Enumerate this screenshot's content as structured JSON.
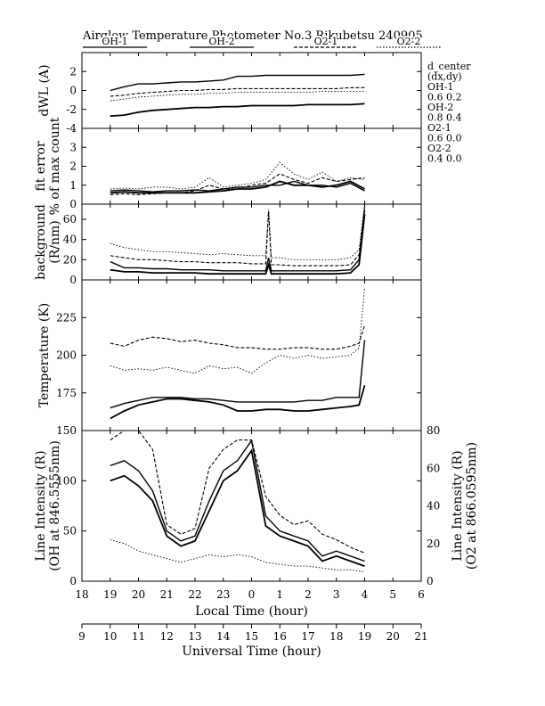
{
  "chart_data": [
    {
      "type": "line",
      "title": "Airglow Temperature Photometer No.3  Rikubetsu    240905",
      "legend": {
        "placement": "top",
        "entries": [
          "OH-1",
          "OH-2",
          "O2-1",
          "O2-2"
        ]
      },
      "side_notes": [
        "d_center",
        "(dx,dy)",
        "OH-1",
        "0.6  0.2",
        "OH-2",
        "0.8  0.4",
        "O2-1",
        "0.6  0.0",
        "O2-2",
        "0.4  0.0"
      ],
      "x_local": {
        "label": "Local Time (hour)",
        "ticks": [
          "18",
          "19",
          "20",
          "21",
          "22",
          "23",
          "0",
          "1",
          "2",
          "3",
          "4",
          "5",
          "6"
        ]
      },
      "x_ut": {
        "label": "Universal Time (hour)",
        "ticks": [
          "9",
          "10",
          "11",
          "12",
          "13",
          "14",
          "15",
          "16",
          "17",
          "18",
          "19",
          "20",
          "21"
        ]
      },
      "grid": false
    },
    {
      "panel": "dwl",
      "ylabel": "dWL (A)",
      "ylim": [
        -4,
        4
      ],
      "yticks": [
        "-4",
        "-2",
        "0",
        "2"
      ],
      "series": [
        {
          "name": "OH-1",
          "style": "solid",
          "x": [
            19.0,
            19.5,
            20.0,
            20.5,
            21.0,
            21.5,
            22.0,
            22.5,
            23.0,
            23.5,
            24.0,
            24.5,
            25.0,
            25.5,
            26.0,
            26.5,
            27.0,
            27.5,
            28.0
          ],
          "y": [
            0.0,
            0.4,
            0.7,
            0.7,
            0.8,
            0.9,
            0.9,
            1.0,
            1.1,
            1.5,
            1.5,
            1.6,
            1.6,
            1.6,
            1.6,
            1.6,
            1.6,
            1.6,
            1.7
          ]
        },
        {
          "name": "OH-2",
          "style": "solid",
          "x": [
            19.0,
            19.5,
            20.0,
            20.5,
            21.0,
            21.5,
            22.0,
            22.5,
            23.0,
            23.5,
            24.0,
            24.5,
            25.0,
            25.5,
            26.0,
            26.5,
            27.0,
            27.5,
            28.0
          ],
          "y": [
            -2.7,
            -2.6,
            -2.3,
            -2.1,
            -2.0,
            -1.9,
            -1.8,
            -1.8,
            -1.7,
            -1.7,
            -1.6,
            -1.6,
            -1.6,
            -1.6,
            -1.5,
            -1.5,
            -1.5,
            -1.5,
            -1.4
          ]
        },
        {
          "name": "O2-1",
          "style": "dashed",
          "x": [
            19.0,
            19.5,
            20.0,
            20.5,
            21.0,
            21.5,
            22.0,
            22.5,
            23.0,
            23.5,
            24.0,
            24.5,
            25.0,
            25.5,
            26.0,
            26.5,
            27.0,
            27.5,
            28.0
          ],
          "y": [
            -0.6,
            -0.5,
            -0.3,
            -0.2,
            -0.1,
            0.0,
            0.0,
            0.1,
            0.1,
            0.2,
            0.2,
            0.2,
            0.2,
            0.2,
            0.2,
            0.2,
            0.2,
            0.3,
            0.3
          ]
        },
        {
          "name": "O2-2",
          "style": "dotted",
          "x": [
            19.0,
            19.5,
            20.0,
            20.5,
            21.0,
            21.5,
            22.0,
            22.5,
            23.0,
            23.5,
            24.0,
            24.5,
            25.0,
            25.5,
            26.0,
            26.5,
            27.0,
            27.5,
            28.0
          ],
          "y": [
            -1.1,
            -0.9,
            -0.7,
            -0.6,
            -0.5,
            -0.4,
            -0.4,
            -0.3,
            -0.3,
            -0.2,
            -0.2,
            -0.2,
            -0.2,
            -0.2,
            -0.2,
            -0.1,
            -0.1,
            -0.1,
            -0.1
          ]
        }
      ]
    },
    {
      "panel": "fiterr",
      "ylabel": "fit error",
      "ylabel2": "% of max count",
      "ylim": [
        0,
        4
      ],
      "yticks": [
        "0",
        "1",
        "2",
        "3"
      ],
      "series": [
        {
          "name": "OH-1",
          "style": "solid",
          "x": [
            19.0,
            19.5,
            20.0,
            20.5,
            21.0,
            21.5,
            22.0,
            22.5,
            23.0,
            23.5,
            24.0,
            24.5,
            25.0,
            25.5,
            26.0,
            26.5,
            27.0,
            27.5,
            28.0
          ],
          "y": [
            0.7,
            0.75,
            0.7,
            0.65,
            0.7,
            0.7,
            0.75,
            0.7,
            0.8,
            0.9,
            0.9,
            1.0,
            1.0,
            1.2,
            1.0,
            1.0,
            0.9,
            1.1,
            0.7
          ]
        },
        {
          "name": "OH-2",
          "style": "solid",
          "x": [
            19.0,
            19.5,
            20.0,
            20.5,
            21.0,
            21.5,
            22.0,
            22.5,
            23.0,
            23.5,
            24.0,
            24.5,
            25.0,
            25.5,
            26.0,
            26.5,
            27.0,
            27.5,
            28.0
          ],
          "y": [
            0.6,
            0.65,
            0.6,
            0.6,
            0.6,
            0.6,
            0.6,
            0.65,
            0.7,
            0.8,
            0.8,
            0.9,
            1.2,
            1.0,
            1.0,
            0.9,
            1.0,
            1.2,
            0.8
          ]
        },
        {
          "name": "O2-1",
          "style": "dashed",
          "x": [
            19.0,
            19.5,
            20.0,
            20.5,
            21.0,
            21.5,
            22.0,
            22.5,
            23.0,
            23.5,
            24.0,
            24.5,
            25.0,
            25.5,
            26.0,
            26.5,
            27.0,
            27.5,
            28.0
          ],
          "y": [
            0.5,
            0.55,
            0.5,
            0.55,
            0.6,
            0.6,
            0.7,
            1.0,
            0.8,
            0.8,
            1.0,
            1.1,
            1.6,
            1.3,
            1.1,
            1.4,
            1.2,
            1.3,
            1.4
          ]
        },
        {
          "name": "O2-2",
          "style": "dotted",
          "x": [
            19.0,
            19.5,
            20.0,
            20.5,
            21.0,
            21.5,
            22.0,
            22.5,
            23.0,
            23.5,
            24.0,
            24.5,
            25.0,
            25.5,
            26.0,
            26.5,
            27.0,
            27.5,
            28.0
          ],
          "y": [
            0.8,
            0.85,
            0.8,
            0.9,
            0.9,
            0.8,
            0.9,
            1.4,
            0.9,
            1.0,
            1.1,
            1.3,
            2.2,
            1.6,
            1.3,
            1.7,
            1.2,
            1.4,
            1.3
          ]
        }
      ]
    },
    {
      "panel": "bg",
      "ylabel": "background",
      "ylabel2": "(R/nm)",
      "ylim": [
        0,
        75
      ],
      "yticks": [
        "0",
        "20",
        "40",
        "60"
      ],
      "series": [
        {
          "name": "OH-1",
          "style": "solid",
          "x": [
            19.0,
            19.5,
            20.0,
            20.5,
            21.0,
            21.5,
            22.0,
            22.5,
            23.0,
            23.5,
            24.0,
            24.5,
            24.6,
            24.7,
            25.0,
            25.5,
            26.0,
            26.5,
            27.0,
            27.5,
            27.8,
            28.0
          ],
          "y": [
            18,
            12,
            12,
            11,
            11,
            10,
            10,
            10,
            9,
            9,
            9,
            9,
            22,
            9,
            9,
            9,
            9,
            9,
            9,
            10,
            20,
            70
          ]
        },
        {
          "name": "OH-2",
          "style": "solid",
          "x": [
            19.0,
            19.5,
            20.0,
            20.5,
            21.0,
            21.5,
            22.0,
            22.5,
            23.0,
            23.5,
            24.0,
            24.5,
            24.6,
            24.7,
            25.0,
            25.5,
            26.0,
            26.5,
            27.0,
            27.5,
            27.8,
            28.0
          ],
          "y": [
            10,
            8,
            8,
            7,
            7,
            7,
            7,
            6,
            6,
            6,
            6,
            6,
            15,
            6,
            6,
            6,
            6,
            6,
            6,
            7,
            15,
            65
          ]
        },
        {
          "name": "O2-1",
          "style": "dashed",
          "x": [
            19.0,
            19.5,
            20.0,
            20.5,
            21.0,
            21.5,
            22.0,
            22.5,
            23.0,
            23.5,
            24.0,
            24.5,
            24.6,
            24.7,
            25.0,
            25.5,
            26.0,
            26.5,
            27.0,
            27.5,
            27.8,
            28.0
          ],
          "y": [
            24,
            22,
            20,
            20,
            19,
            18,
            18,
            17,
            17,
            17,
            16,
            16,
            68,
            15,
            15,
            14,
            14,
            14,
            14,
            15,
            25,
            72
          ]
        },
        {
          "name": "O2-2",
          "style": "dotted",
          "x": [
            19.0,
            19.5,
            20.0,
            20.5,
            21.0,
            21.5,
            22.0,
            22.5,
            23.0,
            23.5,
            24.0,
            24.5,
            24.6,
            24.7,
            25.0,
            25.5,
            26.0,
            26.5,
            27.0,
            27.5,
            27.8,
            28.0
          ],
          "y": [
            36,
            32,
            30,
            28,
            28,
            27,
            26,
            25,
            26,
            25,
            24,
            24,
            70,
            22,
            22,
            20,
            20,
            20,
            20,
            22,
            30,
            75
          ]
        }
      ]
    },
    {
      "panel": "temp",
      "ylabel": "Temperature (K)",
      "ylim": [
        150,
        250
      ],
      "yticks": [
        "175",
        "200",
        "225"
      ],
      "series": [
        {
          "name": "OH-1",
          "style": "solid",
          "x": [
            19.0,
            19.5,
            20.0,
            20.5,
            21.0,
            21.5,
            22.0,
            22.5,
            23.0,
            23.5,
            24.0,
            24.5,
            25.0,
            25.5,
            26.0,
            26.5,
            27.0,
            27.5,
            27.8,
            28.0
          ],
          "y": [
            165,
            168,
            170,
            172,
            172,
            172,
            171,
            171,
            170,
            169,
            169,
            169,
            169,
            169,
            170,
            170,
            172,
            172,
            172,
            210
          ]
        },
        {
          "name": "OH-2",
          "style": "solid",
          "x": [
            19.0,
            19.5,
            20.0,
            20.5,
            21.0,
            21.5,
            22.0,
            22.5,
            23.0,
            23.5,
            24.0,
            24.5,
            25.0,
            25.5,
            26.0,
            26.5,
            27.0,
            27.5,
            27.8,
            28.0
          ],
          "y": [
            158,
            163,
            167,
            169,
            171,
            171,
            170,
            169,
            167,
            163,
            163,
            164,
            164,
            163,
            163,
            164,
            165,
            166,
            167,
            180
          ]
        },
        {
          "name": "O2-1",
          "style": "dashed",
          "x": [
            19.0,
            19.5,
            20.0,
            20.5,
            21.0,
            21.5,
            22.0,
            22.5,
            23.0,
            23.5,
            24.0,
            24.5,
            25.0,
            25.5,
            26.0,
            26.5,
            27.0,
            27.5,
            27.8,
            28.0
          ],
          "y": [
            208,
            206,
            210,
            212,
            211,
            209,
            210,
            208,
            207,
            205,
            205,
            204,
            204,
            205,
            205,
            204,
            204,
            206,
            208,
            220
          ]
        },
        {
          "name": "O2-2",
          "style": "dotted",
          "x": [
            19.0,
            19.5,
            20.0,
            20.5,
            21.0,
            21.5,
            22.0,
            22.5,
            23.0,
            23.5,
            24.0,
            24.5,
            25.0,
            25.5,
            26.0,
            26.5,
            27.0,
            27.5,
            27.8,
            28.0
          ],
          "y": [
            193,
            190,
            191,
            190,
            192,
            190,
            188,
            193,
            191,
            192,
            188,
            195,
            200,
            198,
            200,
            198,
            199,
            200,
            205,
            245
          ]
        }
      ]
    },
    {
      "panel": "int",
      "ylabel": "Line Intensity (R)",
      "ylabel2": "(OH at 846.5555nm)",
      "y2label": "Line Intensity (R)",
      "y2label2": "(O2 at 866.0595nm)",
      "ylim": [
        0,
        150
      ],
      "yticks": [
        "0",
        "50",
        "100",
        "150"
      ],
      "y2lim": [
        0,
        80
      ],
      "y2ticks": [
        "0",
        "20",
        "40",
        "60",
        "80"
      ],
      "series": [
        {
          "name": "OH-1",
          "style": "solid",
          "axis": "left",
          "x": [
            19.0,
            19.5,
            20.0,
            20.5,
            21.0,
            21.5,
            22.0,
            22.5,
            23.0,
            23.5,
            24.0,
            24.5,
            25.0,
            25.5,
            26.0,
            26.5,
            27.0,
            27.5,
            28.0
          ],
          "y": [
            115,
            120,
            110,
            90,
            50,
            40,
            45,
            80,
            110,
            120,
            140,
            65,
            50,
            45,
            40,
            25,
            30,
            25,
            20
          ]
        },
        {
          "name": "OH-2",
          "style": "solid",
          "axis": "left",
          "x": [
            19.0,
            19.5,
            20.0,
            20.5,
            21.0,
            21.5,
            22.0,
            22.5,
            23.0,
            23.5,
            24.0,
            24.5,
            25.0,
            25.5,
            26.0,
            26.5,
            27.0,
            27.5,
            28.0
          ],
          "y": [
            100,
            105,
            95,
            80,
            45,
            35,
            40,
            70,
            100,
            110,
            130,
            55,
            45,
            40,
            35,
            20,
            25,
            20,
            15
          ]
        },
        {
          "name": "O2-1",
          "style": "dashed",
          "axis": "right",
          "x": [
            19.0,
            19.5,
            20.0,
            20.5,
            21.0,
            21.5,
            22.0,
            22.5,
            23.0,
            23.5,
            24.0,
            24.5,
            25.0,
            25.5,
            26.0,
            26.5,
            27.0,
            27.5,
            28.0
          ],
          "y": [
            75,
            80,
            80,
            70,
            30,
            25,
            28,
            60,
            70,
            75,
            75,
            45,
            35,
            30,
            32,
            25,
            22,
            18,
            15
          ]
        },
        {
          "name": "O2-2",
          "style": "dotted",
          "axis": "right",
          "x": [
            19.0,
            19.5,
            20.0,
            20.5,
            21.0,
            21.5,
            22.0,
            22.5,
            23.0,
            23.5,
            24.0,
            24.5,
            25.0,
            25.5,
            26.0,
            26.5,
            27.0,
            27.5,
            28.0
          ],
          "y": [
            22,
            20,
            16,
            14,
            12,
            10,
            12,
            14,
            13,
            14,
            13,
            10,
            9,
            8,
            8,
            7,
            6,
            6,
            5
          ]
        }
      ]
    }
  ]
}
